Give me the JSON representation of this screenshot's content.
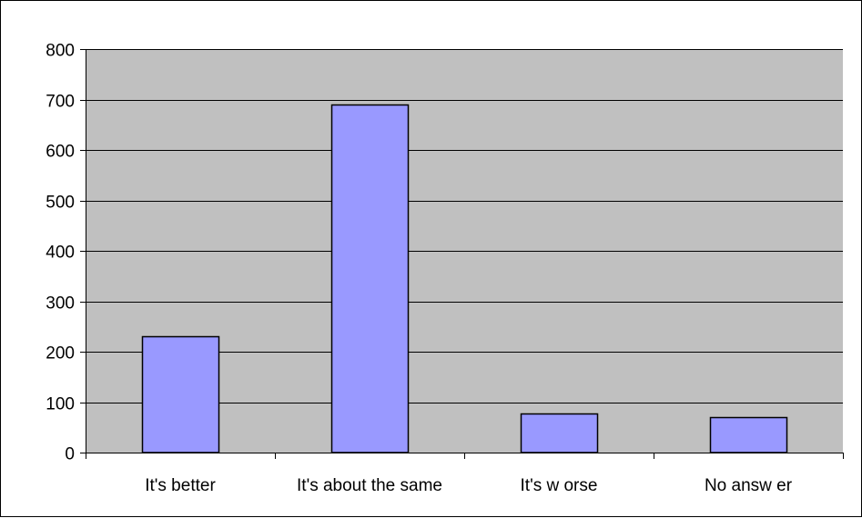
{
  "chart_data": {
    "type": "bar",
    "title": "",
    "xlabel": "",
    "ylabel": "",
    "categories": [
      "It's better",
      "It's about the same",
      "It's w orse",
      "No answ er"
    ],
    "values": [
      230,
      690,
      78,
      70
    ],
    "ylim": [
      0,
      800
    ],
    "yticks": [
      0,
      100,
      200,
      300,
      400,
      500,
      600,
      700,
      800
    ],
    "grid": "horizontal",
    "legend": "none",
    "colors": {
      "bar_fill": "#9999ff",
      "bar_stroke": "#000000",
      "plot_background": "#c0c0c0",
      "gridline": "#000000"
    }
  }
}
